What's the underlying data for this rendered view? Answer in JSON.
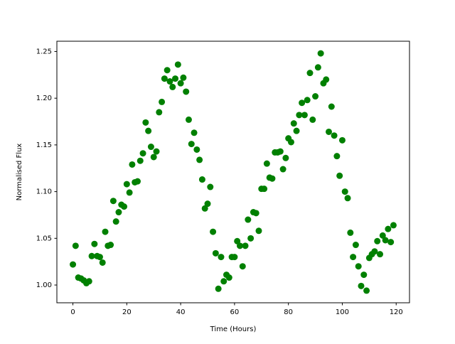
{
  "chart_data": {
    "type": "scatter",
    "xlabel": "Time (Hours)",
    "ylabel": "Normalised Flux",
    "color": "#008000",
    "x": [
      0,
      1,
      2,
      3,
      4,
      5,
      6,
      7,
      8,
      9,
      10,
      11,
      12,
      13,
      14,
      15,
      16,
      17,
      18,
      19,
      20,
      21,
      22,
      23,
      24,
      25,
      26,
      27,
      28,
      29,
      30,
      31,
      32,
      33,
      34,
      35,
      36,
      37,
      38,
      39,
      40,
      41,
      42,
      43,
      44,
      45,
      46,
      47,
      48,
      49,
      50,
      51,
      52,
      53,
      54,
      55,
      56,
      57,
      58,
      59,
      60,
      61,
      62,
      63,
      64,
      65,
      66,
      67,
      68,
      69,
      70,
      71,
      72,
      73,
      74,
      75,
      76,
      77,
      78,
      79,
      80,
      81,
      82,
      83,
      84,
      85,
      86,
      87,
      88,
      89,
      90,
      91,
      92,
      93,
      94,
      95,
      96,
      97,
      98,
      99,
      100,
      101,
      102,
      103,
      104,
      105,
      106,
      107,
      108,
      109,
      110,
      111,
      112,
      113,
      114,
      115,
      116,
      117,
      118,
      119
    ],
    "values": [
      1.022,
      1.042,
      1.008,
      1.007,
      1.005,
      1.002,
      1.004,
      1.031,
      1.044,
      1.031,
      1.03,
      1.024,
      1.057,
      1.042,
      1.043,
      1.09,
      1.068,
      1.078,
      1.086,
      1.084,
      1.108,
      1.099,
      1.129,
      1.11,
      1.111,
      1.133,
      1.141,
      1.174,
      1.165,
      1.148,
      1.137,
      1.143,
      1.185,
      1.196,
      1.221,
      1.23,
      1.218,
      1.212,
      1.221,
      1.236,
      1.216,
      1.222,
      1.207,
      1.177,
      1.151,
      1.163,
      1.145,
      1.134,
      1.113,
      1.082,
      1.087,
      1.105,
      1.057,
      1.034,
      0.996,
      1.03,
      1.004,
      1.011,
      1.008,
      1.03,
      1.03,
      1.047,
      1.042,
      1.02,
      1.042,
      1.07,
      1.05,
      1.078,
      1.077,
      1.058,
      1.103,
      1.103,
      1.13,
      1.115,
      1.114,
      1.142,
      1.142,
      1.143,
      1.124,
      1.136,
      1.157,
      1.153,
      1.173,
      1.165,
      1.182,
      1.195,
      1.182,
      1.198,
      1.227,
      1.177,
      1.202,
      1.233,
      1.248,
      1.216,
      1.22,
      1.164,
      1.191,
      1.16,
      1.138,
      1.117,
      1.155,
      1.1,
      1.093,
      1.056,
      1.03,
      1.043,
      1.02,
      0.999,
      1.011,
      0.994,
      1.029,
      1.033,
      1.036,
      1.047,
      1.033,
      1.053,
      1.048,
      1.06,
      1.046,
      1.064
    ],
    "xlim": [
      -5.95,
      124.95
    ],
    "xticks": [
      0,
      20,
      40,
      60,
      80,
      100,
      120
    ],
    "ylim": [
      0.981,
      1.261
    ],
    "yticks": [
      {
        "value": 1.0,
        "label": "1.00"
      },
      {
        "value": 1.05,
        "label": "1.05"
      },
      {
        "value": 1.1,
        "label": "1.10"
      },
      {
        "value": 1.15,
        "label": "1.15"
      },
      {
        "value": 1.2,
        "label": "1.20"
      },
      {
        "value": 1.25,
        "label": "1.25"
      }
    ]
  }
}
